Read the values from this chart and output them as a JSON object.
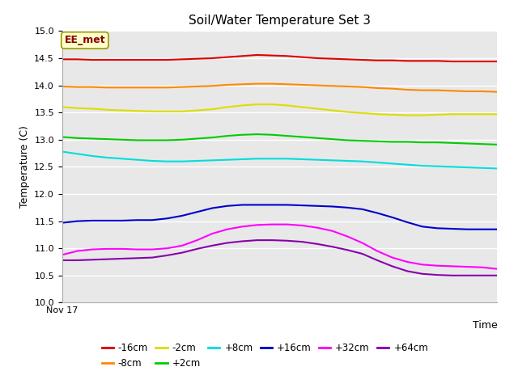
{
  "title": "Soil/Water Temperature Set 3",
  "xlabel": "Time",
  "ylabel": "Temperature (C)",
  "ylim": [
    10.0,
    15.0
  ],
  "yticks": [
    10.0,
    10.5,
    11.0,
    11.5,
    12.0,
    12.5,
    13.0,
    13.5,
    14.0,
    14.5,
    15.0
  ],
  "x_label_text": "Nov 17",
  "annotation_text": "EE_met",
  "background_color": "#e8e8e8",
  "series": {
    "-16cm": {
      "color": "#dd0000",
      "values": [
        14.48,
        14.48,
        14.47,
        14.47,
        14.47,
        14.47,
        14.47,
        14.47,
        14.48,
        14.49,
        14.5,
        14.52,
        14.54,
        14.56,
        14.55,
        14.54,
        14.52,
        14.5,
        14.49,
        14.48,
        14.47,
        14.46,
        14.46,
        14.45,
        14.45,
        14.45,
        14.44,
        14.44,
        14.44,
        14.44
      ]
    },
    "-8cm": {
      "color": "#ff8800",
      "values": [
        13.98,
        13.97,
        13.97,
        13.96,
        13.96,
        13.96,
        13.96,
        13.96,
        13.97,
        13.98,
        13.99,
        14.01,
        14.02,
        14.03,
        14.03,
        14.02,
        14.01,
        14.0,
        13.99,
        13.98,
        13.97,
        13.95,
        13.94,
        13.92,
        13.91,
        13.91,
        13.9,
        13.89,
        13.89,
        13.88
      ]
    },
    "-2cm": {
      "color": "#dddd00",
      "values": [
        13.6,
        13.58,
        13.57,
        13.55,
        13.54,
        13.53,
        13.52,
        13.52,
        13.52,
        13.54,
        13.56,
        13.6,
        13.63,
        13.65,
        13.65,
        13.63,
        13.6,
        13.57,
        13.54,
        13.51,
        13.49,
        13.47,
        13.46,
        13.45,
        13.45,
        13.46,
        13.47,
        13.47,
        13.47,
        13.47
      ]
    },
    "+2cm": {
      "color": "#00cc00",
      "values": [
        13.05,
        13.03,
        13.02,
        13.01,
        13.0,
        12.99,
        12.99,
        12.99,
        13.0,
        13.02,
        13.04,
        13.07,
        13.09,
        13.1,
        13.09,
        13.07,
        13.05,
        13.03,
        13.01,
        12.99,
        12.98,
        12.97,
        12.96,
        12.96,
        12.95,
        12.95,
        12.94,
        12.93,
        12.92,
        12.91
      ]
    },
    "+8cm": {
      "color": "#00dddd",
      "values": [
        12.78,
        12.74,
        12.7,
        12.67,
        12.65,
        12.63,
        12.61,
        12.6,
        12.6,
        12.61,
        12.62,
        12.63,
        12.64,
        12.65,
        12.65,
        12.65,
        12.64,
        12.63,
        12.62,
        12.61,
        12.6,
        12.58,
        12.56,
        12.54,
        12.52,
        12.51,
        12.5,
        12.49,
        12.48,
        12.47
      ]
    },
    "+16cm": {
      "color": "#0000cc",
      "values": [
        11.47,
        11.5,
        11.51,
        11.51,
        11.51,
        11.52,
        11.52,
        11.55,
        11.6,
        11.67,
        11.74,
        11.78,
        11.8,
        11.8,
        11.8,
        11.8,
        11.79,
        11.78,
        11.77,
        11.75,
        11.72,
        11.65,
        11.57,
        11.48,
        11.4,
        11.37,
        11.36,
        11.35,
        11.35,
        11.35
      ]
    },
    "+32cm": {
      "color": "#ff00ff",
      "values": [
        10.88,
        10.95,
        10.98,
        10.99,
        10.99,
        10.98,
        10.98,
        11.0,
        11.05,
        11.15,
        11.27,
        11.35,
        11.4,
        11.43,
        11.44,
        11.44,
        11.42,
        11.38,
        11.32,
        11.22,
        11.1,
        10.95,
        10.83,
        10.75,
        10.7,
        10.68,
        10.67,
        10.66,
        10.65,
        10.62
      ]
    },
    "+64cm": {
      "color": "#8800aa",
      "values": [
        10.78,
        10.78,
        10.79,
        10.8,
        10.81,
        10.82,
        10.83,
        10.87,
        10.92,
        10.99,
        11.05,
        11.1,
        11.13,
        11.15,
        11.15,
        11.14,
        11.12,
        11.08,
        11.03,
        10.97,
        10.9,
        10.78,
        10.67,
        10.58,
        10.53,
        10.51,
        10.5,
        10.5,
        10.5,
        10.5
      ]
    }
  },
  "legend_order": [
    "-16cm",
    "-8cm",
    "-2cm",
    "+2cm",
    "+8cm",
    "+16cm",
    "+32cm",
    "+64cm"
  ]
}
